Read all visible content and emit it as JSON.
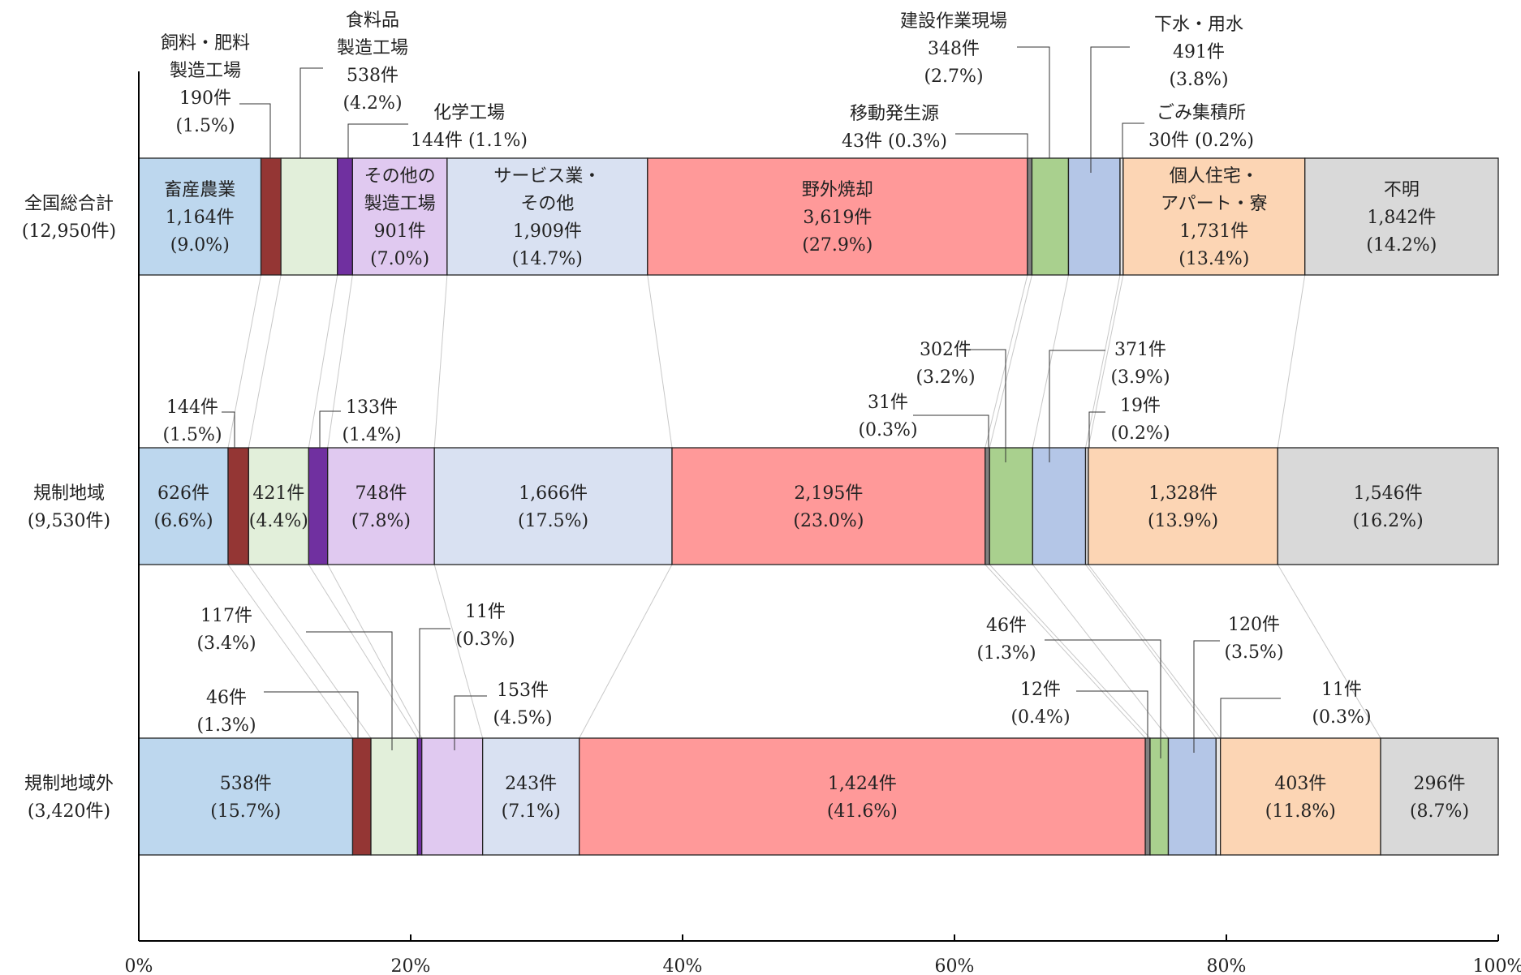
{
  "chart_data": {
    "type": "bar",
    "orientation": "horizontal",
    "stacked": "100%",
    "categories": [
      {
        "name": "全国総合計",
        "total": "(12,950件)"
      },
      {
        "name": "規制地域",
        "total": "(9,530件)"
      },
      {
        "name": "規制地域外",
        "total": "(3,420件)"
      }
    ],
    "series": [
      {
        "name": "畜産農業",
        "name_lines": [
          "畜産農業"
        ],
        "color": "#bdd7ee",
        "values": [
          1164,
          626,
          538
        ],
        "percents": [
          9.0,
          6.6,
          15.7
        ]
      },
      {
        "name": "飼料・肥料製造工場",
        "name_lines": [
          "飼料・肥料",
          "製造工場"
        ],
        "color": "#943634",
        "values": [
          190,
          144,
          46
        ],
        "percents": [
          1.5,
          1.5,
          1.3
        ]
      },
      {
        "name": "食料品製造工場",
        "name_lines": [
          "食料品",
          "製造工場"
        ],
        "color": "#e2efda",
        "values": [
          538,
          421,
          117
        ],
        "percents": [
          4.2,
          4.4,
          3.4
        ]
      },
      {
        "name": "化学工場",
        "name_lines": [
          "化学工場"
        ],
        "color": "#7030a0",
        "values": [
          144,
          133,
          11
        ],
        "percents": [
          1.1,
          1.4,
          0.3
        ]
      },
      {
        "name": "その他の製造工場",
        "name_lines": [
          "その他の",
          "製造工場"
        ],
        "color": "#e0c9f0",
        "values": [
          901,
          748,
          153
        ],
        "percents": [
          7.0,
          7.8,
          4.5
        ]
      },
      {
        "name": "サービス業・その他",
        "name_lines": [
          "サービス業・",
          "その他"
        ],
        "color": "#d9e1f2",
        "values": [
          1909,
          1666,
          243
        ],
        "percents": [
          14.7,
          17.5,
          7.1
        ]
      },
      {
        "name": "野外焼却",
        "name_lines": [
          "野外焼却"
        ],
        "color": "#ff9999",
        "values": [
          3619,
          2195,
          1424
        ],
        "percents": [
          27.9,
          23.0,
          41.6
        ]
      },
      {
        "name": "移動発生源",
        "name_lines": [
          "移動発生源"
        ],
        "color": "#808080",
        "values": [
          43,
          31,
          12
        ],
        "percents": [
          0.3,
          0.3,
          0.4
        ]
      },
      {
        "name": "建設作業現場",
        "name_lines": [
          "建設作業現場"
        ],
        "color": "#a9d08e",
        "values": [
          348,
          302,
          46
        ],
        "percents": [
          2.7,
          3.2,
          1.3
        ]
      },
      {
        "name": "下水・用水",
        "name_lines": [
          "下水・用水"
        ],
        "color": "#b4c6e7",
        "values": [
          491,
          371,
          120
        ],
        "percents": [
          3.8,
          3.9,
          3.5
        ]
      },
      {
        "name": "ごみ集積所",
        "name_lines": [
          "ごみ集積所"
        ],
        "color": "#e7e6e6",
        "values": [
          30,
          19,
          11
        ],
        "percents": [
          0.2,
          0.2,
          0.3
        ]
      },
      {
        "name": "個人住宅・アパート・寮",
        "name_lines": [
          "個人住宅・",
          "アパート・寮"
        ],
        "color": "#fcd5b4",
        "values": [
          1731,
          1328,
          403
        ],
        "percents": [
          13.4,
          13.9,
          11.8
        ]
      },
      {
        "name": "不明",
        "name_lines": [
          "不明"
        ],
        "color": "#d9d9d9",
        "values": [
          1842,
          1546,
          296
        ],
        "percents": [
          14.2,
          16.2,
          8.7
        ]
      }
    ],
    "xlim": [
      0,
      100
    ],
    "xticks": [
      "0%",
      "20%",
      "40%",
      "60%",
      "80%",
      "100%"
    ],
    "grid": false,
    "legend": "none",
    "label_unit": "件"
  }
}
